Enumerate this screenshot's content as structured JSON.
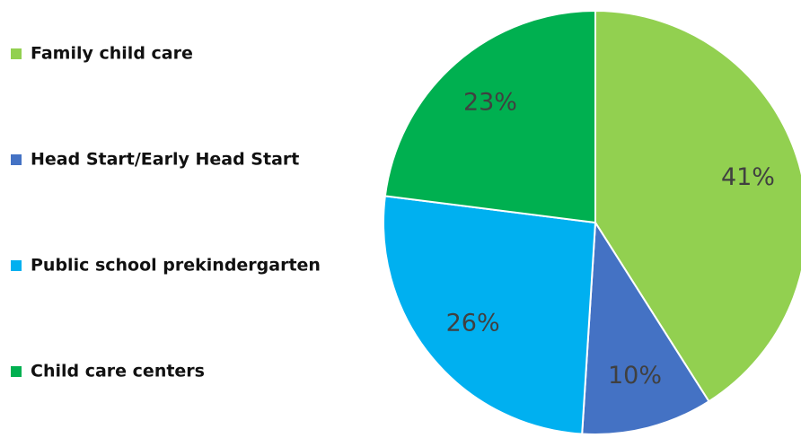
{
  "chart_data": {
    "type": "pie",
    "categories": [
      "Family child care",
      "Head Start/Early Head Start",
      "Public school prekindergarten",
      "Child care centers"
    ],
    "values": [
      41,
      10,
      26,
      23
    ],
    "value_labels": [
      "41%",
      "10%",
      "26%",
      "23%"
    ],
    "colors": [
      "#92d050",
      "#4472c4",
      "#00b0f0",
      "#00b050"
    ],
    "legend": "left"
  }
}
